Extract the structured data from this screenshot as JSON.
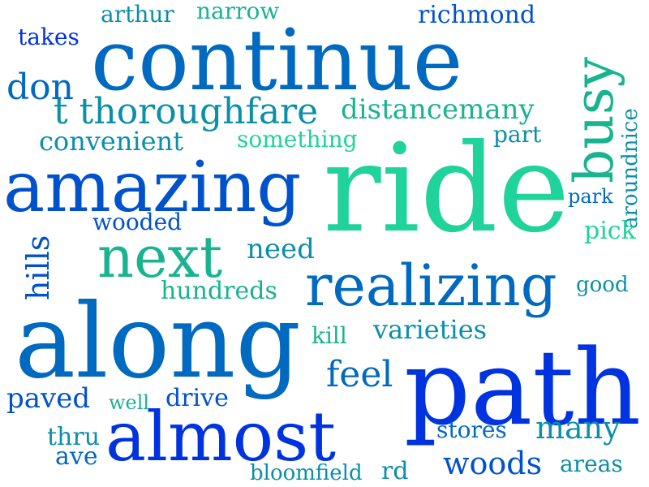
{
  "palette": {
    "blue": "#0033e0",
    "royal": "#0052cc",
    "steel": "#0069c0",
    "ocean": "#0077bb",
    "teal": "#0a8fa8",
    "jade": "#19b38f",
    "mint": "#1fd39a"
  },
  "words": {
    "continue": "continue",
    "ride": "ride",
    "along": "along",
    "path": "path",
    "amazing": "amazing",
    "almost": "almost",
    "realizing": "realizing",
    "next": "next",
    "busy": "busy",
    "thoroughfare": "t thoroughfare",
    "distancemany": "distancemany",
    "don": "don",
    "convenient": "convenient",
    "something": "something",
    "part": "part",
    "arthur": "arthur",
    "narrow": "narrow",
    "richmond": "richmond",
    "takes": "takes",
    "aroundnice": "aroundnice",
    "park": "park",
    "pick": "pick",
    "wooded": "wooded",
    "hills": "hills",
    "need": "need",
    "hundreds": "hundreds",
    "good": "good",
    "kill": "kill",
    "varieties": "varieties",
    "feel": "feel",
    "paved": "paved",
    "well": "well",
    "drive": "drive",
    "thru": "thru",
    "ave": "ave",
    "stores": "stores",
    "many": "many",
    "woods": "woods",
    "areas": "areas",
    "bloomfield": "bloomfield",
    "rd": "rd"
  }
}
